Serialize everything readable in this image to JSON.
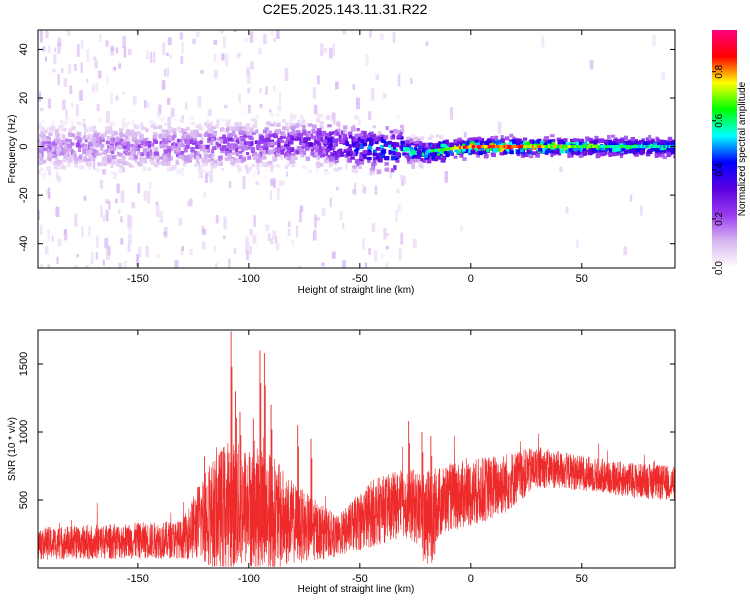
{
  "title": "C2E5.2025.143.11.31.R22",
  "chart_data": [
    {
      "type": "heatmap",
      "xlabel": "Height of straight line (km)",
      "ylabel": "Frequency (Hz)",
      "xlim": [
        -195,
        92
      ],
      "ylim": [
        -50,
        48
      ],
      "xticks": [
        -150,
        -100,
        -50,
        0,
        50
      ],
      "yticks": [
        -40,
        -20,
        0,
        20,
        40
      ],
      "colorbar": {
        "label": "Normalized spectral amplitude",
        "range": [
          0,
          0.97
        ],
        "ticks": [
          0.0,
          0.2,
          0.4,
          0.6,
          0.8
        ],
        "tick_labels": [
          "0.0",
          "0.2",
          "0.4",
          "0.6",
          "0.8"
        ],
        "colormap": [
          "#ffffff",
          "#d9b8f0",
          "#9a3cf0",
          "#5a00e0",
          "#0000ff",
          "#00ffff",
          "#00ff00",
          "#ffff00",
          "#ff0000",
          "#ff0080"
        ]
      },
      "ridge": [
        {
          "x": -195,
          "y": 0,
          "amp": 0.18
        },
        {
          "x": -150,
          "y": 0,
          "amp": 0.2
        },
        {
          "x": -100,
          "y": 1,
          "amp": 0.25
        },
        {
          "x": -70,
          "y": 2,
          "amp": 0.3
        },
        {
          "x": -55,
          "y": 0,
          "amp": 0.4
        },
        {
          "x": -40,
          "y": -1,
          "amp": 0.5
        },
        {
          "x": -20,
          "y": -2,
          "amp": 0.6
        },
        {
          "x": 0,
          "y": 0,
          "amp": 0.9
        },
        {
          "x": 20,
          "y": 0,
          "amp": 0.85
        },
        {
          "x": 50,
          "y": 0,
          "amp": 0.7
        },
        {
          "x": 92,
          "y": 0,
          "amp": 0.55
        }
      ]
    },
    {
      "type": "line",
      "xlabel": "Height of straight line (km)",
      "ylabel": "SNR (10 * v/v)",
      "xlim": [
        -195,
        92
      ],
      "ylim": [
        0,
        1750
      ],
      "xticks": [
        -150,
        -100,
        -50,
        0,
        50
      ],
      "yticks": [
        500,
        1000,
        1500
      ],
      "series_color": "#ee2a2a",
      "envelope": [
        {
          "x": -195,
          "base": 180,
          "spread": 120
        },
        {
          "x": -130,
          "base": 210,
          "spread": 140
        },
        {
          "x": -122,
          "base": 350,
          "spread": 300
        },
        {
          "x": -110,
          "base": 450,
          "spread": 500
        },
        {
          "x": -100,
          "base": 450,
          "spread": 450
        },
        {
          "x": -90,
          "base": 400,
          "spread": 450
        },
        {
          "x": -80,
          "base": 330,
          "spread": 300
        },
        {
          "x": -60,
          "base": 230,
          "spread": 150
        },
        {
          "x": -45,
          "base": 400,
          "spread": 250
        },
        {
          "x": -30,
          "base": 480,
          "spread": 250
        },
        {
          "x": -20,
          "base": 420,
          "spread": 300
        },
        {
          "x": -10,
          "base": 520,
          "spread": 250
        },
        {
          "x": 0,
          "base": 550,
          "spread": 250
        },
        {
          "x": 15,
          "base": 620,
          "spread": 230
        },
        {
          "x": 30,
          "base": 740,
          "spread": 150
        },
        {
          "x": 50,
          "base": 700,
          "spread": 130
        },
        {
          "x": 70,
          "base": 650,
          "spread": 130
        },
        {
          "x": 92,
          "base": 620,
          "spread": 130
        }
      ],
      "peaks": [
        {
          "x": -108,
          "y": 1740
        },
        {
          "x": -106,
          "y": 1300
        },
        {
          "x": -104,
          "y": 1150
        },
        {
          "x": -98,
          "y": 1100
        },
        {
          "x": -95,
          "y": 1600
        },
        {
          "x": -93,
          "y": 1580
        },
        {
          "x": -90,
          "y": 1200
        },
        {
          "x": -120,
          "y": 820
        },
        {
          "x": -78,
          "y": 1050
        },
        {
          "x": -72,
          "y": 950
        },
        {
          "x": -28,
          "y": 1080
        },
        {
          "x": -22,
          "y": 1000
        },
        {
          "x": -18,
          "y": 970
        }
      ]
    }
  ]
}
